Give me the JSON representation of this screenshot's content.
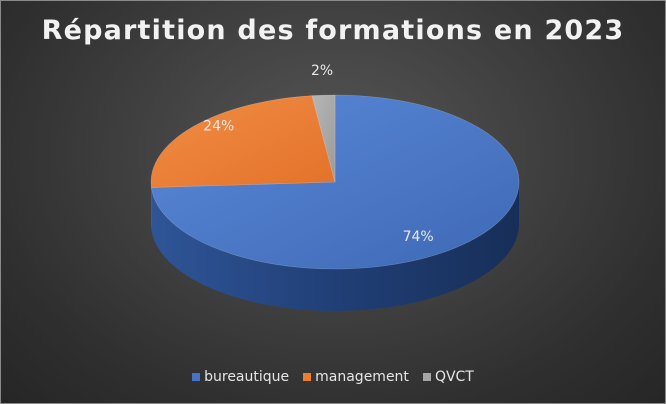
{
  "chart_data": {
    "type": "pie",
    "style": "3d",
    "title": "Répartition des formations en 2023",
    "categories": [
      "bureautique",
      "management",
      "QVCT"
    ],
    "values": [
      74,
      24,
      2
    ],
    "labels": [
      "74%",
      "24%",
      "2%"
    ],
    "colors": [
      "#4472c4",
      "#ed7d31",
      "#a5a5a5"
    ],
    "legend_position": "bottom"
  },
  "legend": {
    "items": [
      {
        "label": "bureautique",
        "color": "#4472c4"
      },
      {
        "label": "management",
        "color": "#ed7d31"
      },
      {
        "label": "QVCT",
        "color": "#a5a5a5"
      }
    ]
  }
}
